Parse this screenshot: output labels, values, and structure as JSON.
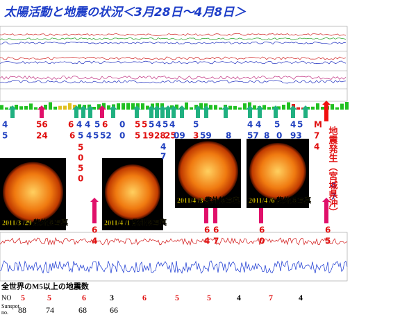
{
  "header": {
    "title": "太陽活動と地震の状況＜3月28日～4月8日＞"
  },
  "annotations": [
    {
      "text": "4",
      "color": "#1f3fbf"
    },
    {
      "text": "56",
      "color": "#e01010"
    },
    {
      "text": "6",
      "color": "#e01010"
    },
    {
      "text": "4",
      "color": "#1f3fbf"
    },
    {
      "text": "4",
      "color": "#1f3fbf"
    },
    {
      "text": "5",
      "color": "#1f3fbf"
    },
    {
      "text": "6",
      "color": "#e01010"
    },
    {
      "text": "0",
      "color": "#1f3fbf"
    },
    {
      "text": "5",
      "color": "#e01010"
    },
    {
      "text": "5",
      "color": "#e01010"
    },
    {
      "text": "5",
      "color": "#1f3fbf"
    },
    {
      "text": "4",
      "color": "#1f3fbf"
    },
    {
      "text": "5",
      "color": "#1f3fbf"
    },
    {
      "text": "4",
      "color": "#1f3fbf"
    },
    {
      "text": "5",
      "color": "#1f3fbf"
    },
    {
      "text": "4",
      "color": "#1f3fbf"
    },
    {
      "text": "4",
      "color": "#1f3fbf"
    },
    {
      "text": "5",
      "color": "#1f3fbf"
    },
    {
      "text": "4",
      "color": "#1f3fbf"
    },
    {
      "text": "5",
      "color": "#1f3fbf"
    },
    {
      "text": "M",
      "color": "#e01010"
    },
    {
      "text": "5",
      "color": "#1f3fbf"
    },
    {
      "text": "24",
      "color": "#e01010"
    },
    {
      "text": "6",
      "color": "#e01010"
    },
    {
      "text": "5",
      "color": "#1f3fbf"
    },
    {
      "text": "4",
      "color": "#1f3fbf"
    },
    {
      "text": "5",
      "color": "#1f3fbf"
    },
    {
      "text": "52",
      "color": "#1f3fbf"
    },
    {
      "text": "0",
      "color": "#1f3fbf"
    },
    {
      "text": "5",
      "color": "#e01010"
    },
    {
      "text": "19",
      "color": "#e01010"
    },
    {
      "text": "28",
      "color": "#e01010"
    },
    {
      "text": "25",
      "color": "#e01010"
    },
    {
      "text": "09",
      "color": "#1f3fbf"
    },
    {
      "text": "3",
      "color": "#e01010"
    },
    {
      "text": "59",
      "color": "#1f3fbf"
    },
    {
      "text": "8",
      "color": "#1f3fbf"
    },
    {
      "text": "57",
      "color": "#1f3fbf"
    },
    {
      "text": "8",
      "color": "#1f3fbf"
    },
    {
      "text": "0",
      "color": "#1f3fbf"
    },
    {
      "text": "93",
      "color": "#1f3fbf"
    },
    {
      "text": "7",
      "color": "#e01010"
    },
    {
      "text": "5",
      "color": "#e01010"
    },
    {
      "text": "0",
      "color": "#e01010"
    },
    {
      "text": "5",
      "color": "#e01010"
    },
    {
      "text": "0",
      "color": "#e01010"
    },
    {
      "text": "4",
      "color": "#1f3fbf"
    },
    {
      "text": "7",
      "color": "#1f3fbf"
    },
    {
      "text": "4",
      "color": "#e01010"
    },
    {
      "text": "4",
      "color": "#1f3fbf"
    },
    {
      "text": "7",
      "color": "#1f3fbf"
    },
    {
      "text": "6",
      "color": "#e01010"
    },
    {
      "text": "4",
      "color": "#e01010"
    },
    {
      "text": "6",
      "color": "#e01010"
    },
    {
      "text": "4",
      "color": "#e01010"
    },
    {
      "text": "6",
      "color": "#e01010"
    },
    {
      "text": "7",
      "color": "#e01010"
    },
    {
      "text": "6",
      "color": "#e01010"
    },
    {
      "text": "0",
      "color": "#e01010"
    },
    {
      "text": "6",
      "color": "#e01010"
    },
    {
      "text": "5",
      "color": "#e01010"
    }
  ],
  "quake_note": "地震発生（宮城県沖）",
  "photos": [
    {
      "caption": "2011/3 /29 紫外線写真"
    },
    {
      "caption": "2011/4 /1 紫外線写真"
    },
    {
      "caption": "2011/4 /3 紫外線写真"
    },
    {
      "caption": "2011/4 /6 紫外線写真"
    }
  ],
  "table": {
    "heading": "全世界のM5以上の地震数",
    "no_label": "NO",
    "sunspot_label": [
      "Sunspot",
      "no."
    ],
    "no_values": [
      {
        "text": "5",
        "color": "#e01010"
      },
      {
        "text": "5",
        "color": "#e01010"
      },
      {
        "text": "6",
        "color": "#e01010"
      },
      {
        "text": "3",
        "color": "#000000"
      },
      {
        "text": "6",
        "color": "#e01010"
      },
      {
        "text": "5",
        "color": "#e01010"
      },
      {
        "text": "5",
        "color": "#e01010"
      },
      {
        "text": "4",
        "color": "#000000"
      },
      {
        "text": "7",
        "color": "#e01010"
      },
      {
        "text": "4",
        "color": "#000000"
      }
    ],
    "sunspot_values": [
      "88",
      "74",
      "68",
      "66"
    ]
  }
}
